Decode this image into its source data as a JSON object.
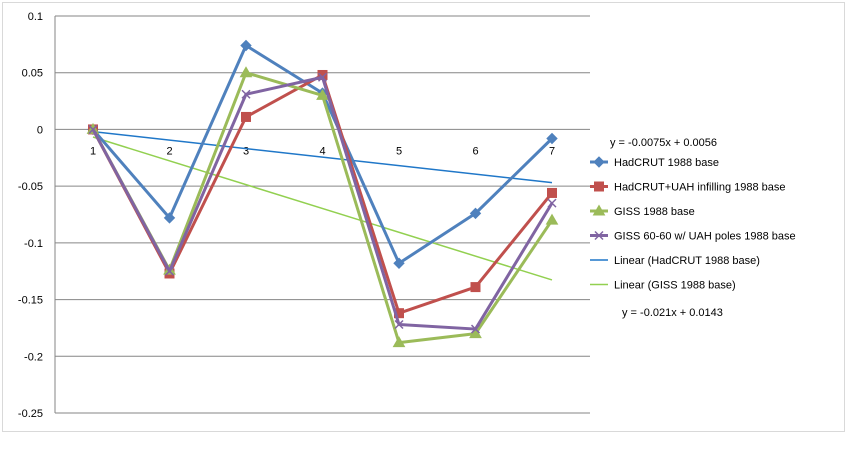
{
  "chart_data": {
    "type": "line",
    "categories": [
      "1",
      "2",
      "3",
      "4",
      "5",
      "6",
      "7"
    ],
    "ylim": [
      -0.25,
      0.1
    ],
    "yticks": [
      "0.1",
      "0.05",
      "0",
      "-0.05",
      "-0.1",
      "-0.15",
      "-0.2",
      "-0.25"
    ],
    "ytick_values": [
      0.1,
      0.05,
      0,
      -0.05,
      -0.1,
      -0.15,
      -0.2,
      -0.25
    ],
    "grid": true,
    "legend_position": "right",
    "series": [
      {
        "name": "HadCRUT 1988 base",
        "color": "#4f81bd",
        "marker": "diamond",
        "values": [
          0,
          -0.078,
          0.074,
          0.032,
          -0.118,
          -0.074,
          -0.008
        ]
      },
      {
        "name": "HadCRUT+UAH infilling 1988 base",
        "color": "#c0504d",
        "marker": "square",
        "values": [
          0,
          -0.127,
          0.011,
          0.048,
          -0.162,
          -0.139,
          -0.056
        ]
      },
      {
        "name": "GISS 1988 base",
        "color": "#9bbb59",
        "marker": "triangle",
        "values": [
          0,
          -0.124,
          0.05,
          0.03,
          -0.188,
          -0.18,
          -0.08
        ]
      },
      {
        "name": "GISS 60-60 w/ UAH poles 1988 base",
        "color": "#8064a2",
        "marker": "x",
        "values": [
          0,
          -0.125,
          0.031,
          0.046,
          -0.172,
          -0.176,
          -0.065
        ]
      }
    ],
    "trendlines": [
      {
        "name": "Linear (HadCRUT 1988 base)",
        "color": "#1f77c8",
        "slope": -0.0075,
        "intercept": 0.0056,
        "equation": "y = -0.0075x + 0.0056"
      },
      {
        "name": "Linear (GISS 1988 base)",
        "color": "#92d050",
        "slope": -0.021,
        "intercept": 0.0143,
        "equation": "y = -0.021x + 0.0143"
      }
    ]
  }
}
